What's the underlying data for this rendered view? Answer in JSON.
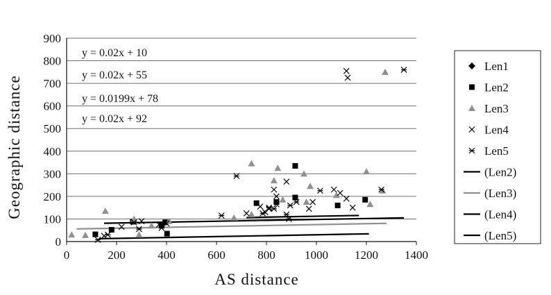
{
  "chart_data": {
    "type": "scatter",
    "xlabel": "AS distance",
    "ylabel": "Geographic distance",
    "xlim": [
      0,
      1400
    ],
    "ylim": [
      0,
      900
    ],
    "x_ticks": [
      0,
      200,
      400,
      600,
      800,
      1000,
      1200,
      1400
    ],
    "y_ticks": [
      0,
      100,
      200,
      300,
      400,
      500,
      600,
      700,
      800,
      900
    ],
    "grid": "horizontal",
    "legend_position": "right",
    "annotations": [
      "y = 0.02x + 10",
      "y = 0.02x + 55",
      "y = 0.0199x + 78",
      "y = 0.02x + 92"
    ],
    "series": [
      {
        "name": "Len1",
        "marker": "diamond",
        "color": "#000000",
        "points": []
      },
      {
        "name": "Len2",
        "marker": "square",
        "color": "#000000",
        "points": [
          [
            115,
            32
          ],
          [
            180,
            52
          ],
          [
            265,
            88
          ],
          [
            395,
            85
          ],
          [
            402,
            35
          ],
          [
            380,
            70
          ],
          [
            760,
            170
          ],
          [
            840,
            175
          ],
          [
            915,
            335
          ],
          [
            915,
            195
          ],
          [
            1085,
            160
          ],
          [
            1195,
            185
          ]
        ]
      },
      {
        "name": "Len3",
        "marker": "triangle",
        "color": "#909090",
        "points": [
          [
            20,
            30
          ],
          [
            75,
            28
          ],
          [
            155,
            135
          ],
          [
            270,
            100
          ],
          [
            290,
            30
          ],
          [
            340,
            70
          ],
          [
            410,
            90
          ],
          [
            670,
            105
          ],
          [
            740,
            345
          ],
          [
            740,
            120
          ],
          [
            830,
            270
          ],
          [
            845,
            325
          ],
          [
            865,
            185
          ],
          [
            950,
            300
          ],
          [
            960,
            175
          ],
          [
            975,
            245
          ],
          [
            1080,
            205
          ],
          [
            1200,
            310
          ],
          [
            1215,
            165
          ],
          [
            1265,
            225
          ],
          [
            1275,
            750
          ]
        ]
      },
      {
        "name": "Len4",
        "marker": "x",
        "color": "#000000",
        "points": [
          [
            150,
            25
          ],
          [
            220,
            65
          ],
          [
            300,
            90
          ],
          [
            370,
            75
          ],
          [
            400,
            80
          ],
          [
            720,
            125
          ],
          [
            775,
            155
          ],
          [
            795,
            130
          ],
          [
            810,
            145
          ],
          [
            830,
            230
          ],
          [
            840,
            200
          ],
          [
            880,
            265
          ],
          [
            970,
            145
          ],
          [
            985,
            175
          ],
          [
            1070,
            230
          ],
          [
            1095,
            215
          ],
          [
            1120,
            190
          ],
          [
            1120,
            755
          ],
          [
            1125,
            725
          ],
          [
            1145,
            150
          ]
        ]
      },
      {
        "name": "Len5",
        "marker": "star",
        "color": "#000000",
        "points": [
          [
            125,
            8
          ],
          [
            165,
            30
          ],
          [
            270,
            85
          ],
          [
            290,
            55
          ],
          [
            380,
            60
          ],
          [
            620,
            115
          ],
          [
            680,
            290
          ],
          [
            785,
            125
          ],
          [
            810,
            150
          ],
          [
            830,
            145
          ],
          [
            840,
            165
          ],
          [
            880,
            120
          ],
          [
            890,
            100
          ],
          [
            895,
            160
          ],
          [
            920,
            175
          ],
          [
            1015,
            225
          ],
          [
            1260,
            230
          ],
          [
            1350,
            760
          ]
        ]
      },
      {
        "name": "(Len2)",
        "marker": "line",
        "color": "#000000",
        "slope": 0.02,
        "intercept": 10,
        "x_range": [
          130,
          1210
        ]
      },
      {
        "name": "(Len3)",
        "marker": "line",
        "color": "#909090",
        "slope": 0.02,
        "intercept": 55,
        "x_range": [
          40,
          1280
        ]
      },
      {
        "name": "(Len4)",
        "marker": "line",
        "color": "#000000",
        "slope": 0.0199,
        "intercept": 78,
        "x_range": [
          150,
          1350
        ]
      },
      {
        "name": "(Len5)",
        "marker": "line",
        "color": "#000000",
        "slope": 0.02,
        "intercept": 92,
        "x_range": [
          720,
          1170
        ]
      }
    ]
  }
}
